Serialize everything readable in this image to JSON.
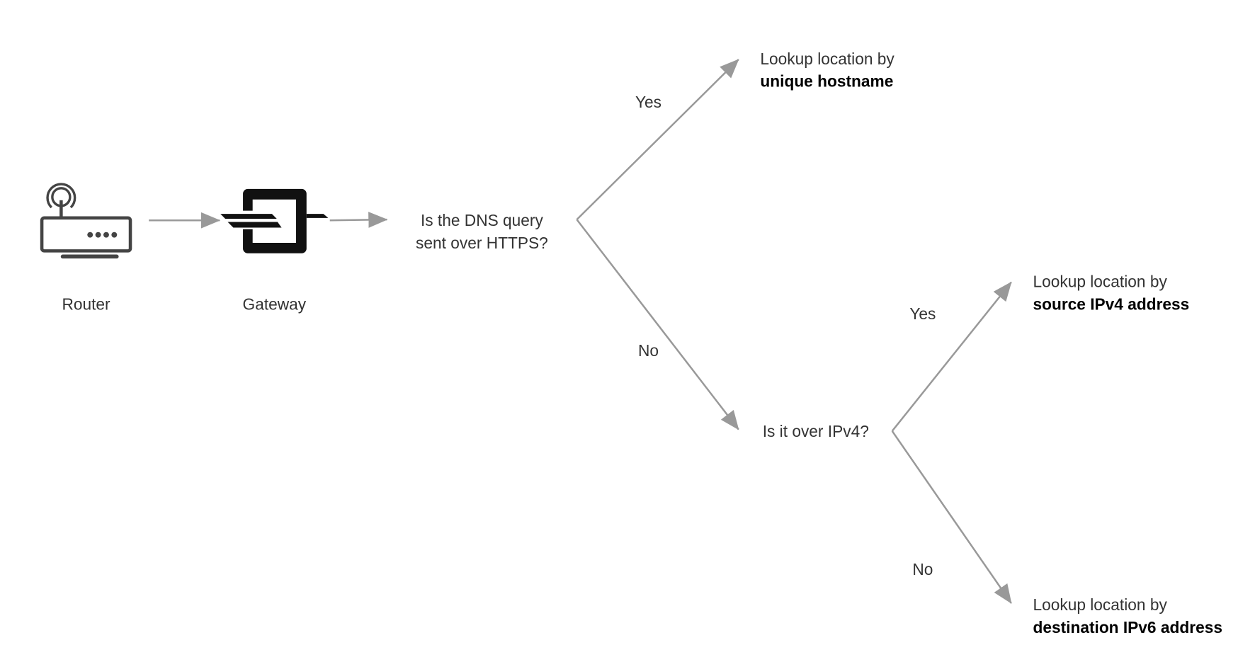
{
  "nodes": {
    "router": {
      "label": "Router",
      "icon": "router-icon"
    },
    "gateway": {
      "label": "Gateway",
      "icon": "gateway-icon"
    },
    "q1": {
      "line1": "Is the DNS query",
      "line2": "sent over HTTPS?"
    },
    "q2": {
      "line1": "Is it over IPv4?"
    },
    "r1": {
      "line1": "Lookup location by",
      "line2": "unique hostname"
    },
    "r2": {
      "line1": "Lookup location by",
      "line2": "source IPv4 address"
    },
    "r3": {
      "line1": "Lookup location by",
      "line2": "destination IPv6 address"
    }
  },
  "edges": {
    "q1_yes": "Yes",
    "q1_no": "No",
    "q2_yes": "Yes",
    "q2_no": "No"
  },
  "colors": {
    "edge": "#999999",
    "icon_router": "#444444",
    "icon_gateway": "#111111"
  }
}
